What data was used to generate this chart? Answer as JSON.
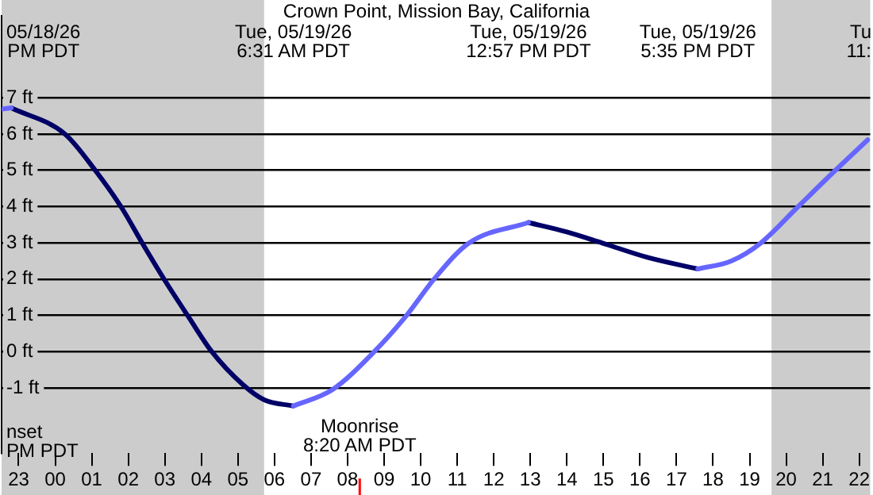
{
  "chart_data": {
    "type": "line",
    "title": "Crown Point, Mission Bay, California",
    "x": [
      "--05-18T22:32",
      "--05-18T22:48",
      "--05-19T00:16",
      "--05-19T01:07",
      "--05-19T01:49",
      "--05-19T02:23",
      "--05-19T02:59",
      "--05-19T03:38",
      "--05-19T04:17",
      "--05-19T05:08",
      "--05-19T05:43",
      "--05-19T06:31",
      "--05-19T07:35",
      "--05-19T08:44",
      "--05-19T09:36",
      "--05-19T10:23",
      "--05-19T11:19",
      "--05-19T12:57",
      "--05-19T14:00",
      "--05-19T14:59",
      "--05-19T16:12",
      "--05-19T17:35",
      "--05-19T18:30",
      "--05-19T19:18",
      "--05-19T20:18",
      "--05-19T21:19",
      "--05-19T22:14"
    ],
    "series": [
      {
        "color": "#000066",
        "values": [
          null,
          6.72,
          6.0,
          4.97,
          3.97,
          2.99,
          1.99,
          0.98,
          0,
          -0.91,
          -1.33,
          -1.5,
          null,
          null,
          null,
          null,
          null,
          3.56,
          3.3,
          2.99,
          2.6,
          2.28,
          null,
          null,
          null,
          null,
          null
        ]
      },
      {
        "color": "#6666ff",
        "values": [
          6.69,
          6.72,
          null,
          null,
          null,
          null,
          null,
          null,
          null,
          null,
          null,
          -1.5,
          -1.05,
          0,
          0.98,
          2.02,
          2.99,
          3.56,
          null,
          null,
          null,
          2.28,
          2.5,
          2.99,
          3.97,
          4.97,
          5.84
        ]
      }
    ],
    "xlim": [
      "--05-18T22:32",
      "--05-19T22:18"
    ],
    "xticks": [
      {
        "value": "--05-18T23:00",
        "label": "23"
      },
      {
        "value": "--05-19T00:00",
        "label": "00"
      },
      {
        "value": "--05-19T01:00",
        "label": "01"
      },
      {
        "value": "--05-19T02:00",
        "label": "02"
      },
      {
        "value": "--05-19T03:00",
        "label": "03"
      },
      {
        "value": "--05-19T04:00",
        "label": "04"
      },
      {
        "value": "--05-19T05:00",
        "label": "05"
      },
      {
        "value": "--05-19T06:00",
        "label": "06"
      },
      {
        "value": "--05-19T07:00",
        "label": "07"
      },
      {
        "value": "--05-19T08:00",
        "label": "08"
      },
      {
        "value": "--05-19T09:00",
        "label": "09"
      },
      {
        "value": "--05-19T10:00",
        "label": "10"
      },
      {
        "value": "--05-19T11:00",
        "label": "11"
      },
      {
        "value": "--05-19T12:00",
        "label": "12"
      },
      {
        "value": "--05-19T13:00",
        "label": "13"
      },
      {
        "value": "--05-19T14:00",
        "label": "14"
      },
      {
        "value": "--05-19T15:00",
        "label": "15"
      },
      {
        "value": "--05-19T16:00",
        "label": "16"
      },
      {
        "value": "--05-19T17:00",
        "label": "17"
      },
      {
        "value": "--05-19T18:00",
        "label": "18"
      },
      {
        "value": "--05-19T19:00",
        "label": "19"
      },
      {
        "value": "--05-19T20:00",
        "label": "20"
      },
      {
        "value": "--05-19T21:00",
        "label": "21"
      },
      {
        "value": "--05-19T22:00",
        "label": "22"
      }
    ],
    "ylim": [
      -2.8,
      9.25
    ],
    "yticks": [
      {
        "value": -1,
        "label": "-1 ft"
      },
      {
        "value": 0,
        "label": "0 ft"
      },
      {
        "value": 1,
        "label": "1 ft"
      },
      {
        "value": 2,
        "label": "2 ft"
      },
      {
        "value": 3,
        "label": "3 ft"
      },
      {
        "value": 4,
        "label": "4 ft"
      },
      {
        "value": 5,
        "label": "5 ft"
      },
      {
        "value": 6,
        "label": "6 ft"
      },
      {
        "value": 7,
        "label": "7 ft"
      }
    ],
    "grid": "y",
    "legend": false,
    "marker": "none",
    "line_style": "solid",
    "bands": [
      {
        "axis": "x",
        "from": "--05-18T22:32",
        "to": "--05-19T05:43",
        "color": "#cccccc"
      },
      {
        "axis": "x",
        "from": "--05-19T19:36",
        "to": "--05-19T22:18",
        "color": "#cccccc"
      }
    ],
    "ref_lines": [
      {
        "axis": "x",
        "value": "--05-19T08:20",
        "label": "Moonrise\n8:20 AM PDT",
        "color": "#ff0000"
      }
    ],
    "annotations": [
      "05/18/26\nPM PDT",
      "Tue, 05/19/26\n6:31 AM PDT",
      "Tue, 05/19/26\n12:57 PM PDT",
      "Tue, 05/19/26\n5:35 PM PDT",
      "nset\nPM PDT",
      "Tu\n11:"
    ]
  }
}
